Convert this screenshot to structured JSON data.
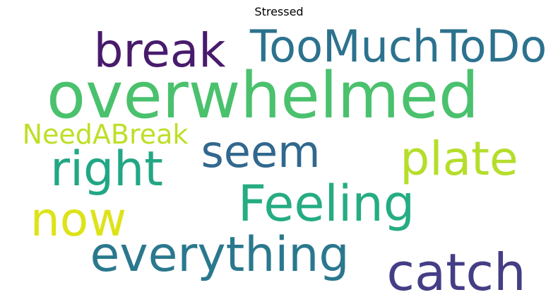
{
  "title": "Stressed",
  "words": [
    {
      "text": "break",
      "color": "#481b6d"
    },
    {
      "text": "TooMuchToDo",
      "color": "#2c728e"
    },
    {
      "text": "overwhelmed",
      "color": "#4ac16d"
    },
    {
      "text": "NeedABreak",
      "color": "#bddf26"
    },
    {
      "text": "seem",
      "color": "#31688e"
    },
    {
      "text": "plate",
      "color": "#b5de2b"
    },
    {
      "text": "right",
      "color": "#22a785"
    },
    {
      "text": "now",
      "color": "#dde318"
    },
    {
      "text": "Feeling",
      "color": "#25ac82"
    },
    {
      "text": "everything",
      "color": "#2a788e"
    },
    {
      "text": "catch",
      "color": "#433e85"
    }
  ]
}
